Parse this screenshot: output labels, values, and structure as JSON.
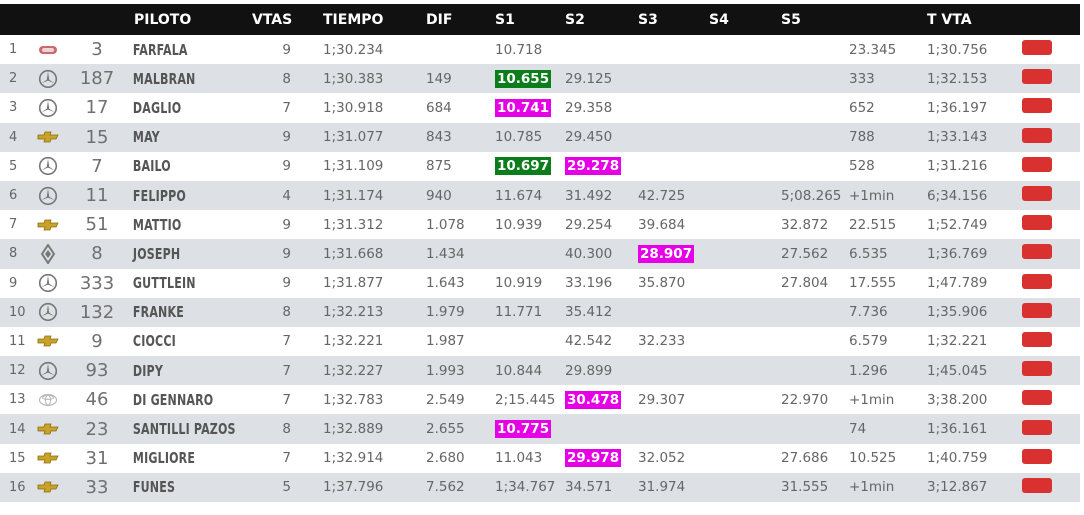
{
  "headers": {
    "pos": "",
    "logo": "",
    "num": "",
    "piloto": "PILOTO",
    "vtas": "VTAS",
    "tiempo": "TIEMPO",
    "dif": "DIF",
    "s1": "S1",
    "s2": "S2",
    "s3": "S3",
    "s4": "S4",
    "s5": "S5",
    "extra": "",
    "tvta": "T VTA",
    "flag": ""
  },
  "colors": {
    "green": "#0b7d1b",
    "magenta": "#e600e6",
    "flag_red": "#d93030",
    "header_bg": "#111111",
    "row_alt": "#dde0e4"
  },
  "rows": [
    {
      "pos": "1",
      "brand": "dodge",
      "num": "3",
      "pilot": "FARFALA",
      "vtas": "9",
      "tiempo": "1;30.234",
      "dif": "",
      "s1": "10.718",
      "s1_hl": "",
      "s2": "",
      "s2_hl": "",
      "s3": "",
      "s3_hl": "",
      "s4": "",
      "s5": "",
      "extra": "23.345",
      "tvta": "1;30.756"
    },
    {
      "pos": "2",
      "brand": "mercedes",
      "num": "187",
      "pilot": "MALBRAN",
      "vtas": "8",
      "tiempo": "1;30.383",
      "dif": "149",
      "s1": "10.655",
      "s1_hl": "green",
      "s2": "29.125",
      "s2_hl": "",
      "s3": "",
      "s3_hl": "",
      "s4": "",
      "s5": "",
      "extra": "333",
      "tvta": "1;32.153"
    },
    {
      "pos": "3",
      "brand": "mercedes",
      "num": "17",
      "pilot": "DAGLIO",
      "vtas": "7",
      "tiempo": "1;30.918",
      "dif": "684",
      "s1": "10.741",
      "s1_hl": "magenta",
      "s2": "29.358",
      "s2_hl": "",
      "s3": "",
      "s3_hl": "",
      "s4": "",
      "s5": "",
      "extra": "652",
      "tvta": "1;36.197"
    },
    {
      "pos": "4",
      "brand": "chevrolet",
      "num": "15",
      "pilot": "MAY",
      "vtas": "9",
      "tiempo": "1;31.077",
      "dif": "843",
      "s1": "10.785",
      "s1_hl": "",
      "s2": "29.450",
      "s2_hl": "",
      "s3": "",
      "s3_hl": "",
      "s4": "",
      "s5": "",
      "extra": "788",
      "tvta": "1;33.143"
    },
    {
      "pos": "5",
      "brand": "mercedes",
      "num": "7",
      "pilot": "BAILO",
      "vtas": "9",
      "tiempo": "1;31.109",
      "dif": "875",
      "s1": "10.697",
      "s1_hl": "green",
      "s2": "29.278",
      "s2_hl": "magenta",
      "s3": "",
      "s3_hl": "",
      "s4": "",
      "s5": "",
      "extra": "528",
      "tvta": "1;31.216"
    },
    {
      "pos": "6",
      "brand": "mercedes",
      "num": "11",
      "pilot": "FELIPPO",
      "vtas": "4",
      "tiempo": "1;31.174",
      "dif": "940",
      "s1": "11.674",
      "s1_hl": "",
      "s2": "31.492",
      "s2_hl": "",
      "s3": "42.725",
      "s3_hl": "",
      "s4": "",
      "s5": "5;08.265",
      "extra": "+1min",
      "tvta": "6;34.156"
    },
    {
      "pos": "7",
      "brand": "chevrolet",
      "num": "51",
      "pilot": "MATTIO",
      "vtas": "9",
      "tiempo": "1;31.312",
      "dif": "1.078",
      "s1": "10.939",
      "s1_hl": "",
      "s2": "29.254",
      "s2_hl": "",
      "s3": "39.684",
      "s3_hl": "",
      "s4": "",
      "s5": "32.872",
      "extra": "22.515",
      "tvta": "1;52.749"
    },
    {
      "pos": "8",
      "brand": "renault",
      "num": "8",
      "pilot": "JOSEPH",
      "vtas": "9",
      "tiempo": "1;31.668",
      "dif": "1.434",
      "s1": "",
      "s1_hl": "",
      "s2": "40.300",
      "s2_hl": "",
      "s3": "28.907",
      "s3_hl": "magenta",
      "s4": "",
      "s5": "27.562",
      "extra": "6.535",
      "tvta": "1;36.769"
    },
    {
      "pos": "9",
      "brand": "mercedes",
      "num": "333",
      "pilot": "GUTTLEIN",
      "vtas": "9",
      "tiempo": "1;31.877",
      "dif": "1.643",
      "s1": "10.919",
      "s1_hl": "",
      "s2": "33.196",
      "s2_hl": "",
      "s3": "35.870",
      "s3_hl": "",
      "s4": "",
      "s5": "27.804",
      "extra": "17.555",
      "tvta": "1;47.789"
    },
    {
      "pos": "10",
      "brand": "mercedes",
      "num": "132",
      "pilot": "FRANKE",
      "vtas": "8",
      "tiempo": "1;32.213",
      "dif": "1.979",
      "s1": "11.771",
      "s1_hl": "",
      "s2": "35.412",
      "s2_hl": "",
      "s3": "",
      "s3_hl": "",
      "s4": "",
      "s5": "",
      "extra": "7.736",
      "tvta": "1;35.906"
    },
    {
      "pos": "11",
      "brand": "chevrolet",
      "num": "9",
      "pilot": "CIOCCI",
      "vtas": "7",
      "tiempo": "1;32.221",
      "dif": "1.987",
      "s1": "",
      "s1_hl": "",
      "s2": "42.542",
      "s2_hl": "",
      "s3": "32.233",
      "s3_hl": "",
      "s4": "",
      "s5": "",
      "extra": "6.579",
      "tvta": "1;32.221"
    },
    {
      "pos": "12",
      "brand": "mercedes",
      "num": "93",
      "pilot": "DIPY",
      "vtas": "7",
      "tiempo": "1;32.227",
      "dif": "1.993",
      "s1": "10.844",
      "s1_hl": "",
      "s2": "29.899",
      "s2_hl": "",
      "s3": "",
      "s3_hl": "",
      "s4": "",
      "s5": "",
      "extra": "1.296",
      "tvta": "1;45.045"
    },
    {
      "pos": "13",
      "brand": "toyota",
      "num": "46",
      "pilot": "DI GENNARO",
      "vtas": "7",
      "tiempo": "1;32.783",
      "dif": "2.549",
      "s1": "2;15.445",
      "s1_hl": "",
      "s2": "30.478",
      "s2_hl": "magenta",
      "s3": "29.307",
      "s3_hl": "",
      "s4": "",
      "s5": "22.970",
      "extra": "+1min",
      "tvta": "3;38.200"
    },
    {
      "pos": "14",
      "brand": "chevrolet",
      "num": "23",
      "pilot": "SANTILLI PAZOS",
      "vtas": "8",
      "tiempo": "1;32.889",
      "dif": "2.655",
      "s1": "10.775",
      "s1_hl": "magenta",
      "s2": "",
      "s2_hl": "",
      "s3": "",
      "s3_hl": "",
      "s4": "",
      "s5": "",
      "extra": "74",
      "tvta": "1;36.161"
    },
    {
      "pos": "15",
      "brand": "chevrolet",
      "num": "31",
      "pilot": "MIGLIORE",
      "vtas": "7",
      "tiempo": "1;32.914",
      "dif": "2.680",
      "s1": "11.043",
      "s1_hl": "",
      "s2": "29.978",
      "s2_hl": "magenta",
      "s3": "32.052",
      "s3_hl": "",
      "s4": "",
      "s5": "27.686",
      "extra": "10.525",
      "tvta": "1;40.759"
    },
    {
      "pos": "16",
      "brand": "chevrolet",
      "num": "33",
      "pilot": "FUNES",
      "vtas": "5",
      "tiempo": "1;37.796",
      "dif": "7.562",
      "s1": "1;34.767",
      "s1_hl": "",
      "s2": "34.571",
      "s2_hl": "",
      "s3": "31.974",
      "s3_hl": "",
      "s4": "",
      "s5": "31.555",
      "extra": "+1min",
      "tvta": "3;12.867"
    }
  ]
}
